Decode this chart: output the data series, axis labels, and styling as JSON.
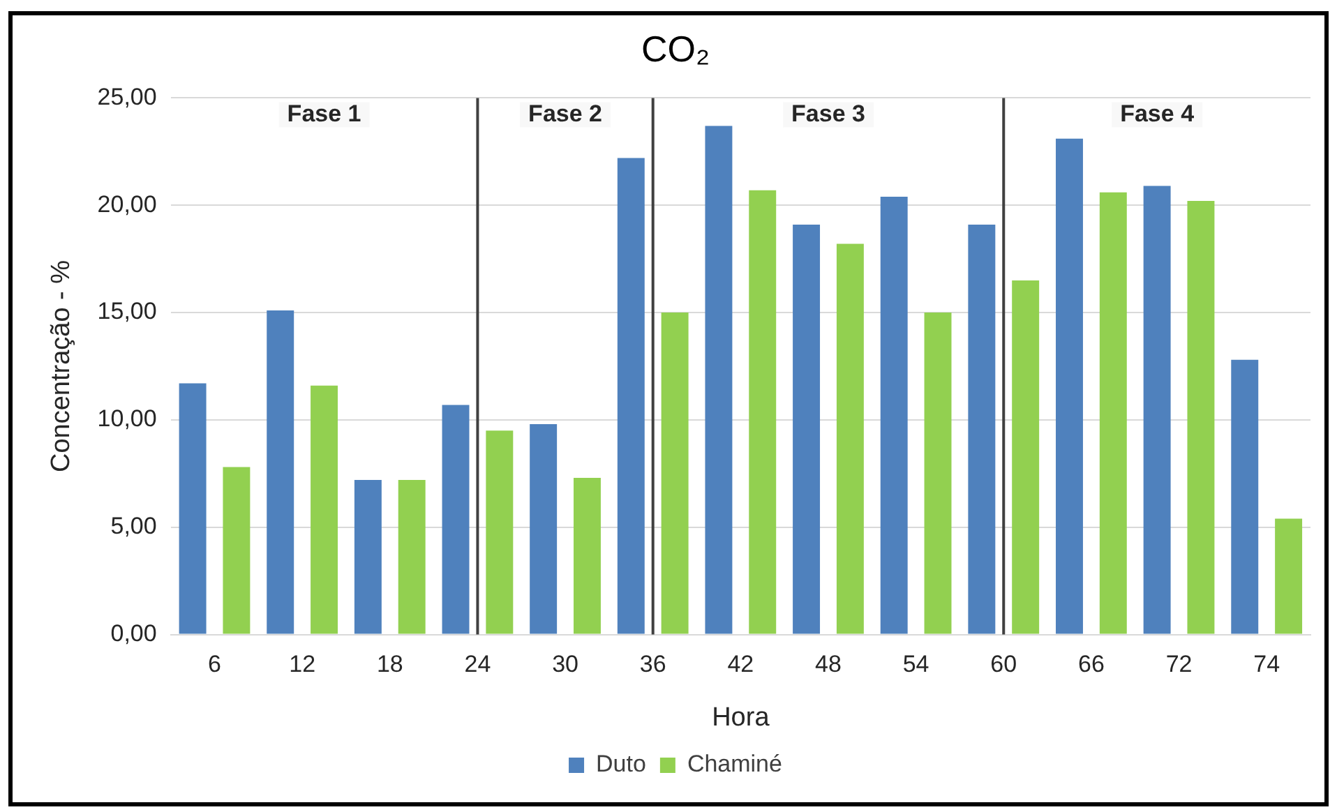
{
  "chart_data": {
    "type": "bar",
    "title": "CO₂",
    "xlabel": "Hora",
    "ylabel": "Concentração - %",
    "categories": [
      "6",
      "12",
      "18",
      "24",
      "30",
      "36",
      "42",
      "48",
      "54",
      "60",
      "66",
      "72",
      "74"
    ],
    "series": [
      {
        "name": "Duto",
        "color": "#4f81bd",
        "values": [
          11.7,
          15.1,
          7.2,
          10.7,
          9.8,
          22.2,
          23.7,
          19.1,
          20.4,
          19.1,
          23.1,
          20.9,
          12.8
        ]
      },
      {
        "name": "Chaminé",
        "color": "#92d050",
        "values": [
          7.8,
          11.6,
          7.2,
          9.5,
          7.3,
          15.0,
          20.7,
          18.2,
          15.0,
          16.5,
          20.6,
          20.2,
          5.4
        ]
      }
    ],
    "ylim": [
      0,
      25
    ],
    "yticks": [
      {
        "value": 0,
        "label": "0,00"
      },
      {
        "value": 5,
        "label": "5,00"
      },
      {
        "value": 10,
        "label": "10,00"
      },
      {
        "value": 15,
        "label": "15,00"
      },
      {
        "value": 20,
        "label": "20,00"
      },
      {
        "value": 25,
        "label": "25,00"
      }
    ],
    "grid": "y",
    "legend": "bottom",
    "ref_lines": [
      {
        "axis": "x",
        "value": "24",
        "color": "#404040"
      },
      {
        "axis": "x",
        "value": "36",
        "color": "#404040"
      },
      {
        "axis": "x",
        "value": "60",
        "color": "#404040"
      }
    ],
    "annotations": [
      "Fase 1",
      "Fase 2",
      "Fase 3",
      "Fase 4"
    ]
  }
}
